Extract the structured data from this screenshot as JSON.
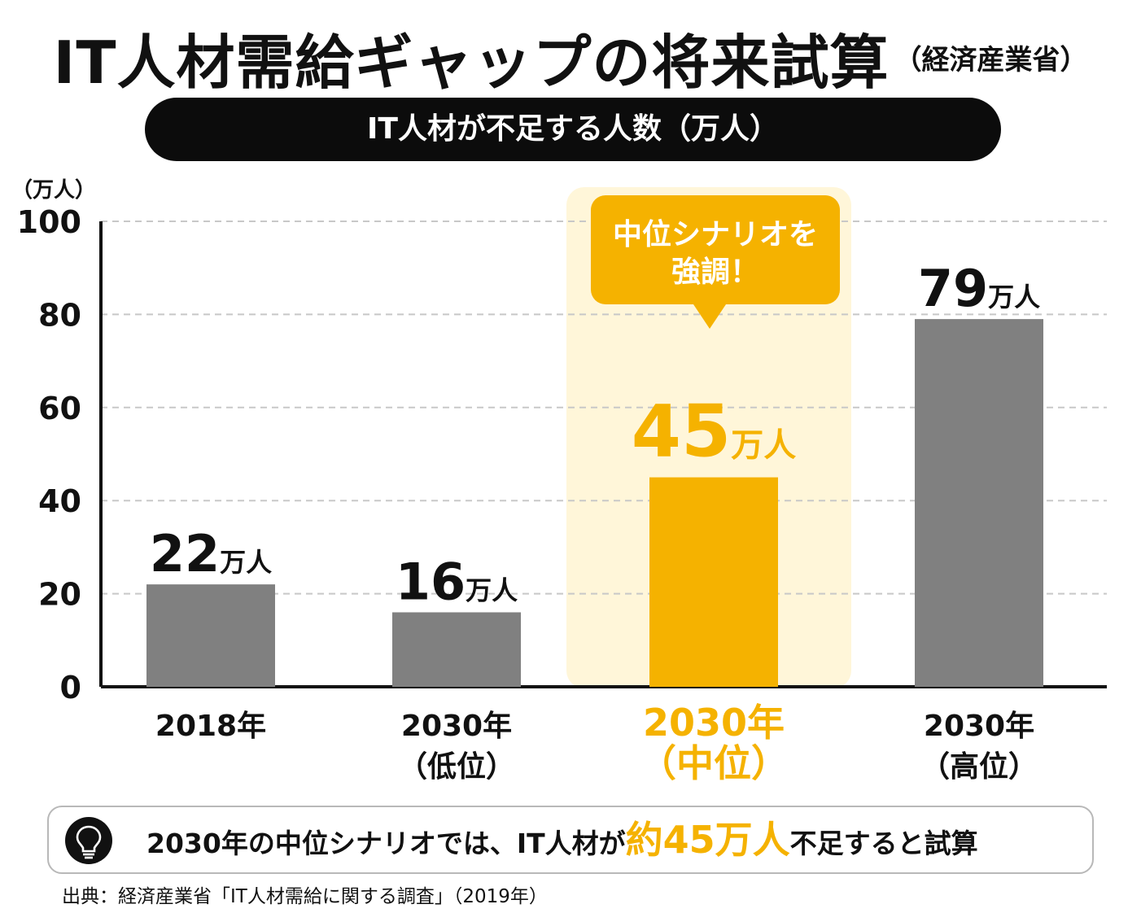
{
  "title": {
    "main": "IT人材需給ギャップの将来試算",
    "sub": "（経済産業省）"
  },
  "banner": "IT人材が不足する人数（万人）",
  "callout": {
    "line1": "中位シナリオを",
    "line2": "強調！"
  },
  "note": {
    "icon": "lightbulb-icon",
    "before": "2030年の中位シナリオでは、IT人材が",
    "highlight": "約45万人",
    "after": "不足すると試算"
  },
  "source": "出典：経済産業省「IT人材需給に関する調査」（2019年）",
  "colors": {
    "bar": "#808080",
    "highlight": "#f5b200",
    "highlight_bg": "#fff6d9",
    "grid": "#c8c8c8"
  },
  "chart_data": {
    "type": "bar",
    "ylabel": "（万人）",
    "ylim": [
      0,
      100
    ],
    "yticks": [
      0,
      20,
      40,
      60,
      80,
      100
    ],
    "grid": true,
    "categories": [
      {
        "line1": "2018年",
        "line2": ""
      },
      {
        "line1": "2030年",
        "line2": "（低位）"
      },
      {
        "line1": "2030年",
        "line2": "（中位）"
      },
      {
        "line1": "2030年",
        "line2": "（高位）"
      }
    ],
    "values": [
      22,
      16,
      45,
      79
    ],
    "value_labels": [
      "22",
      "16",
      "45",
      "79"
    ],
    "unit": "万人",
    "highlight_index": 2
  }
}
